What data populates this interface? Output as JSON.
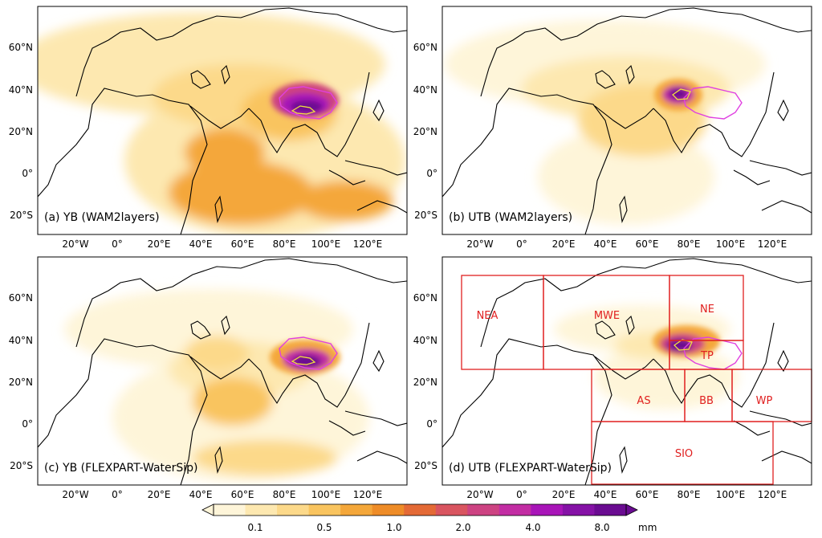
{
  "panels": [
    {
      "id": "a",
      "caption": "(a) YB (WAM2layers)",
      "target_outline": "full"
    },
    {
      "id": "b",
      "caption": "(b) UTB (WAM2layers)",
      "target_outline": "west"
    },
    {
      "id": "c",
      "caption": "(c) YB (FLEXPART-WaterSip)",
      "target_outline": "full"
    },
    {
      "id": "d",
      "caption": "(d) UTB (FLEXPART-WaterSip)",
      "target_outline": "west"
    }
  ],
  "lat_ticks": [
    "60°N",
    "40°N",
    "20°N",
    "0°",
    "20°S"
  ],
  "lon_ticks": [
    "20°W",
    "0°",
    "20°E",
    "40°E",
    "60°E",
    "80°E",
    "100°E",
    "120°E"
  ],
  "regions": [
    {
      "name": "NEA"
    },
    {
      "name": "MWE"
    },
    {
      "name": "NE"
    },
    {
      "name": "TP"
    },
    {
      "name": "AS"
    },
    {
      "name": "BB"
    },
    {
      "name": "WP"
    },
    {
      "name": "SIO"
    }
  ],
  "colorbar": {
    "ticks": [
      "0.1",
      "0.5",
      "1.0",
      "2.0",
      "4.0",
      "8.0"
    ],
    "unit": "mm",
    "colors": [
      "#fef5d9",
      "#fde8b0",
      "#fcd98a",
      "#f9c45f",
      "#f4a73a",
      "#ee8c28",
      "#e46a36",
      "#d95560",
      "#cd4382",
      "#c22da3",
      "#a815b8",
      "#8512a6",
      "#6a0c91"
    ]
  },
  "colors": {
    "region_box": "#e02020",
    "region_label": "#e02020",
    "basin_outline": "#e040e0",
    "yb_outline": "#f0e040",
    "coast": "#000000"
  }
}
